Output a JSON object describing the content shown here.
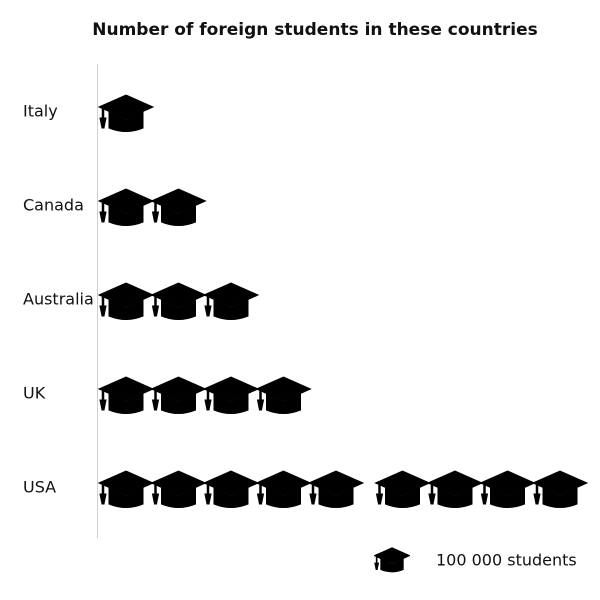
{
  "chart_data": {
    "type": "pictograph",
    "title": "Number of foreign students in these countries",
    "categories": [
      "Italy",
      "Canada",
      "Australia",
      "UK",
      "USA"
    ],
    "values": [
      100000,
      200000,
      300000,
      400000,
      900000
    ],
    "unit_value": 100000,
    "icon": "graduation-cap-icon",
    "icon_color": "#000000",
    "legend": {
      "label": "100 000 students",
      "position": "bottom-right"
    }
  }
}
